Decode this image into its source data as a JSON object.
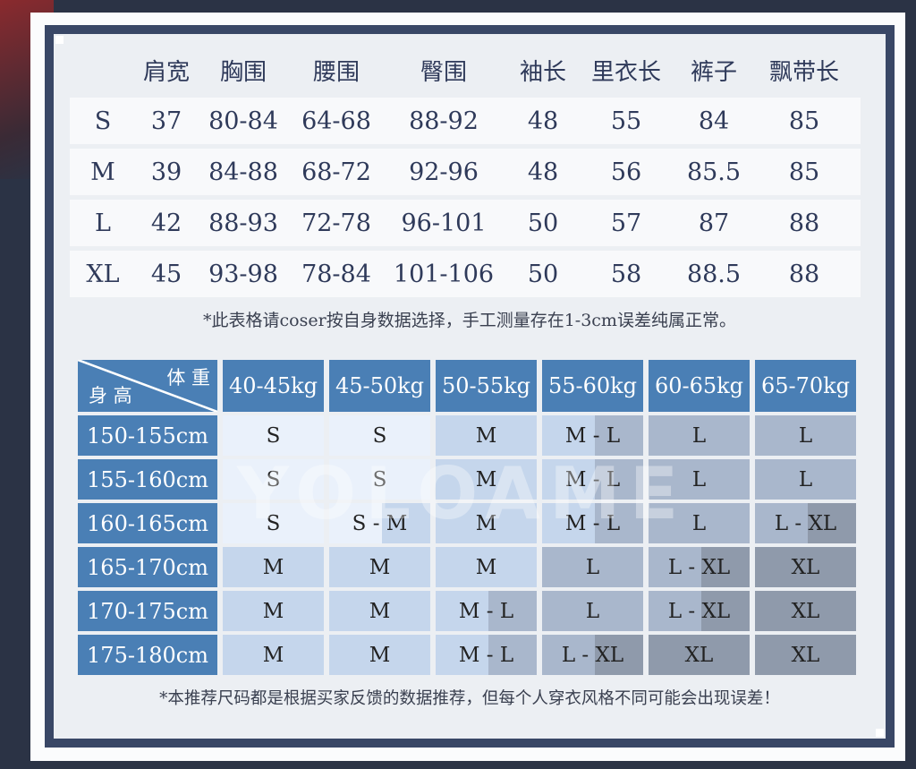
{
  "size_table": {
    "headers": [
      "",
      "肩宽",
      "胸围",
      "腰围",
      "臀围",
      "袖长",
      "里衣长",
      "裤子",
      "飘带长"
    ],
    "rows": [
      [
        "S",
        "37",
        "80-84",
        "64-68",
        "88-92",
        "48",
        "55",
        "84",
        "85"
      ],
      [
        "M",
        "39",
        "84-88",
        "68-72",
        "92-96",
        "48",
        "56",
        "85.5",
        "85"
      ],
      [
        "L",
        "42",
        "88-93",
        "72-78",
        "96-101",
        "50",
        "57",
        "87",
        "88"
      ],
      [
        "XL",
        "45",
        "93-98",
        "78-84",
        "101-106",
        "50",
        "58",
        "88.5",
        "88"
      ]
    ],
    "note": "*此表格请coser按自身数据选择，手工测量存在1-3cm误差纯属正常。"
  },
  "recommend_table": {
    "corner_weight": "体 重",
    "corner_height": "身 高",
    "weights": [
      "40-45kg",
      "45-50kg",
      "50-55kg",
      "55-60kg",
      "60-65kg",
      "65-70kg"
    ],
    "heights": [
      "150-155cm",
      "155-160cm",
      "160-165cm",
      "165-170cm",
      "170-175cm",
      "175-180cm"
    ],
    "cells": [
      [
        "S",
        "S",
        "M",
        "M - L",
        "L",
        "L"
      ],
      [
        "S",
        "S",
        "M",
        "M - L",
        "L",
        "L"
      ],
      [
        "S",
        "S - M",
        "M",
        "M - L",
        "L",
        "L - XL"
      ],
      [
        "M",
        "M",
        "M",
        "L",
        "L - XL",
        "XL"
      ],
      [
        "M",
        "M",
        "M - L",
        "L",
        "L - XL",
        "XL"
      ],
      [
        "M",
        "M",
        "M - L",
        "L - XL",
        "XL",
        "XL"
      ]
    ],
    "size_colors": {
      "S": "#eaf1fb",
      "M": "#c5d6ec",
      "L": "#a9b7cc",
      "XL": "#8f9aab"
    },
    "header_color": "#4a7fb5",
    "note": "*本推荐尺码都是根据买家反馈的数据推荐，但每个人穿衣风格不同可能会出现误差！"
  },
  "watermark": "YOLOAME"
}
